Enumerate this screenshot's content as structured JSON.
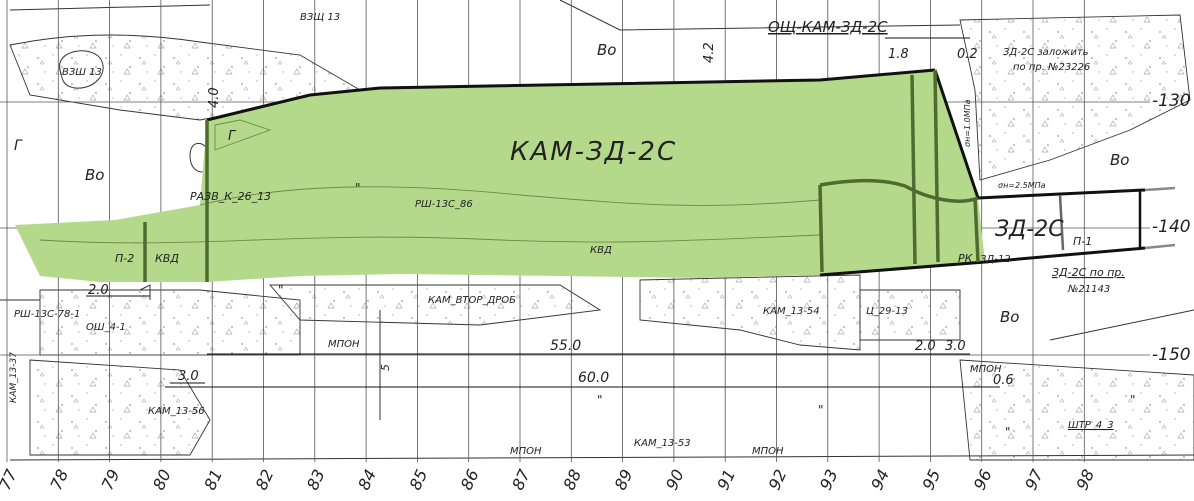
{
  "main_zone": {
    "label": "КАМ-ЗД-2С",
    "fill": "#b5d98a",
    "edge": "#4f6b2f"
  },
  "side_zone": {
    "label": "ЗД-2С"
  },
  "header": {
    "top_label": "ОЩ-КАМ-ЗД-2С",
    "sub_label": "ВЗЩ-13"
  },
  "row_labels": [
    "-130",
    "-140",
    "-150"
  ],
  "col_labels": [
    "77",
    "78",
    "79",
    "80",
    "81",
    "82",
    "83",
    "84",
    "85",
    "86",
    "87",
    "88",
    "89",
    "90",
    "91",
    "92",
    "93",
    "94",
    "95",
    "96",
    "97",
    "98"
  ],
  "labels": [
    {
      "name": "label-vzsh-13-top",
      "text": "ВЗЩ 13"
    },
    {
      "name": "label-vzsh-13",
      "text": "ВЗШ 13"
    },
    {
      "name": "label-vo-top",
      "text": "Во"
    },
    {
      "name": "label-dim-4-2",
      "text": "4.2"
    },
    {
      "name": "label-dim-1-8",
      "text": "1.8"
    },
    {
      "name": "label-dim-0-2",
      "text": "0.2"
    },
    {
      "name": "label-zd2c-zalozhit",
      "text": "ЗД-2С заложить"
    },
    {
      "name": "label-po-pr-23226",
      "text": "по пр. №23226"
    },
    {
      "name": "label-dim-4-0",
      "text": "4.0"
    },
    {
      "name": "label-g-left",
      "text": "Г"
    },
    {
      "name": "label-g-zone",
      "text": "Г"
    },
    {
      "name": "label-vo-left",
      "text": "Во"
    },
    {
      "name": "label-sigma-1",
      "text": "σн=1.0МПа"
    },
    {
      "name": "label-vo-right",
      "text": "Во"
    },
    {
      "name": "label-sigma-2",
      "text": "σн=2.5МПа"
    },
    {
      "name": "label-razv",
      "text": "РАЗВ_К_26_13"
    },
    {
      "name": "label-quote-1",
      "text": "\""
    },
    {
      "name": "label-rsh-13c-86",
      "text": "РШ-13С_86"
    },
    {
      "name": "label-p-2",
      "text": "П-2"
    },
    {
      "name": "label-kvd-left",
      "text": "КВД"
    },
    {
      "name": "label-kvd-mid",
      "text": "КВД"
    },
    {
      "name": "label-rk",
      "text": "РК"
    },
    {
      "name": "label-zd-12",
      "text": "ЗД-12"
    },
    {
      "name": "label-p-1",
      "text": "П-1"
    },
    {
      "name": "label-zd2c-po-pr",
      "text": "ЗД-2С по пр."
    },
    {
      "name": "label-no-21143",
      "text": "№21143"
    },
    {
      "name": "label-dim-2-0-left",
      "text": "2.0"
    },
    {
      "name": "label-rsh-13c-78",
      "text": "РШ-13С-78-1"
    },
    {
      "name": "label-quote-2",
      "text": "\""
    },
    {
      "name": "label-kam-vtor",
      "text": "КАМ_ВТОР_ДРОБ"
    },
    {
      "name": "label-kam-13-54",
      "text": "КАМ_13-54"
    },
    {
      "name": "label-ts-29-13",
      "text": "Ц_29-13"
    },
    {
      "name": "label-osh-4-1",
      "text": "ОШ_4-1"
    },
    {
      "name": "label-vo-lower",
      "text": "Во"
    },
    {
      "name": "label-mpon-1",
      "text": "МПОН"
    },
    {
      "name": "label-dim-55",
      "text": "55.0"
    },
    {
      "name": "label-dim-2-0",
      "text": "2.0"
    },
    {
      "name": "label-dim-3-0",
      "text": "3.0"
    },
    {
      "name": "label-kam-13-37",
      "text": "КАМ_13-37"
    },
    {
      "name": "label-dim-3-0-left",
      "text": "3.0"
    },
    {
      "name": "label-dim-60",
      "text": "60.0"
    },
    {
      "name": "label-mpon-2",
      "text": "МПОН"
    },
    {
      "name": "label-dim-0-6",
      "text": "0.6"
    },
    {
      "name": "label-dim-5",
      "text": "5"
    },
    {
      "name": "label-kam-13-56",
      "text": "КАМ_13-56"
    },
    {
      "name": "label-quote-3",
      "text": "\""
    },
    {
      "name": "label-quote-4",
      "text": "\""
    },
    {
      "name": "label-quote-5",
      "text": "\""
    },
    {
      "name": "label-quote-6",
      "text": "\""
    },
    {
      "name": "label-shtr-4-3",
      "text": "ШТР_4_3"
    },
    {
      "name": "label-kam-13-53",
      "text": "КАМ_13-53"
    },
    {
      "name": "label-mpon-3",
      "text": "МПОН"
    },
    {
      "name": "label-mpon-4",
      "text": "МПОН"
    }
  ]
}
